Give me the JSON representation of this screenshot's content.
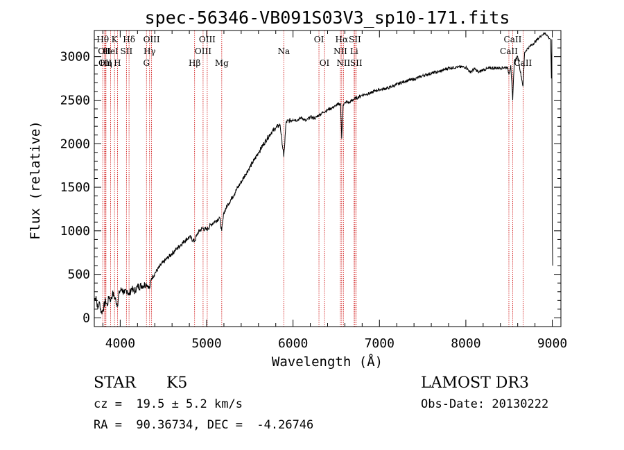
{
  "chart_data": {
    "type": "line",
    "title": "spec-56346-VB091S03V3_sp10-171.fits",
    "xlabel": "Wavelength (Å)",
    "ylabel": "Flux (relative)",
    "xlim": [
      3700,
      9100
    ],
    "ylim": [
      -100,
      3300
    ],
    "x_ticks": [
      4000,
      5000,
      6000,
      7000,
      8000,
      9000
    ],
    "y_ticks": [
      0,
      500,
      1000,
      1500,
      2000,
      2500,
      3000
    ],
    "series": [
      {
        "name": "flux",
        "points": [
          [
            3700,
            200
          ],
          [
            3720,
            250
          ],
          [
            3740,
            100
          ],
          [
            3760,
            180
          ],
          [
            3780,
            60
          ],
          [
            3800,
            90
          ],
          [
            3830,
            200
          ],
          [
            3850,
            140
          ],
          [
            3870,
            250
          ],
          [
            3890,
            200
          ],
          [
            3910,
            280
          ],
          [
            3930,
            250
          ],
          [
            3968,
            150
          ],
          [
            3990,
            300
          ],
          [
            4020,
            330
          ],
          [
            4050,
            280
          ],
          [
            4080,
            320
          ],
          [
            4102,
            260
          ],
          [
            4130,
            340
          ],
          [
            4160,
            300
          ],
          [
            4200,
            360
          ],
          [
            4250,
            370
          ],
          [
            4300,
            390
          ],
          [
            4340,
            340
          ],
          [
            4360,
            450
          ],
          [
            4400,
            510
          ],
          [
            4450,
            580
          ],
          [
            4500,
            640
          ],
          [
            4550,
            690
          ],
          [
            4600,
            740
          ],
          [
            4650,
            790
          ],
          [
            4700,
            840
          ],
          [
            4750,
            890
          ],
          [
            4800,
            930
          ],
          [
            4861,
            880
          ],
          [
            4900,
            980
          ],
          [
            4950,
            1030
          ],
          [
            5000,
            1010
          ],
          [
            5050,
            1070
          ],
          [
            5100,
            1110
          ],
          [
            5150,
            1150
          ],
          [
            5175,
            1000
          ],
          [
            5200,
            1210
          ],
          [
            5250,
            1310
          ],
          [
            5300,
            1390
          ],
          [
            5350,
            1480
          ],
          [
            5400,
            1560
          ],
          [
            5450,
            1650
          ],
          [
            5500,
            1730
          ],
          [
            5550,
            1810
          ],
          [
            5600,
            1900
          ],
          [
            5650,
            1980
          ],
          [
            5700,
            2060
          ],
          [
            5750,
            2130
          ],
          [
            5800,
            2180
          ],
          [
            5850,
            2220
          ],
          [
            5893,
            1850
          ],
          [
            5920,
            2250
          ],
          [
            6000,
            2280
          ],
          [
            6050,
            2270
          ],
          [
            6100,
            2300
          ],
          [
            6150,
            2260
          ],
          [
            6200,
            2310
          ],
          [
            6250,
            2290
          ],
          [
            6300,
            2330
          ],
          [
            6350,
            2360
          ],
          [
            6400,
            2390
          ],
          [
            6450,
            2410
          ],
          [
            6500,
            2440
          ],
          [
            6550,
            2460
          ],
          [
            6563,
            2060
          ],
          [
            6580,
            2450
          ],
          [
            6620,
            2480
          ],
          [
            6650,
            2470
          ],
          [
            6700,
            2510
          ],
          [
            6750,
            2530
          ],
          [
            6800,
            2560
          ],
          [
            6850,
            2570
          ],
          [
            6900,
            2580
          ],
          [
            6950,
            2610
          ],
          [
            7000,
            2620
          ],
          [
            7100,
            2640
          ],
          [
            7200,
            2680
          ],
          [
            7300,
            2720
          ],
          [
            7400,
            2740
          ],
          [
            7500,
            2780
          ],
          [
            7600,
            2810
          ],
          [
            7700,
            2830
          ],
          [
            7800,
            2870
          ],
          [
            7900,
            2880
          ],
          [
            8000,
            2880
          ],
          [
            8050,
            2820
          ],
          [
            8100,
            2860
          ],
          [
            8150,
            2820
          ],
          [
            8200,
            2850
          ],
          [
            8300,
            2870
          ],
          [
            8400,
            2870
          ],
          [
            8480,
            2880
          ],
          [
            8498,
            2800
          ],
          [
            8520,
            2900
          ],
          [
            8542,
            2500
          ],
          [
            8560,
            2950
          ],
          [
            8600,
            3000
          ],
          [
            8662,
            2660
          ],
          [
            8680,
            3050
          ],
          [
            8720,
            3100
          ],
          [
            8780,
            3150
          ],
          [
            8840,
            3210
          ],
          [
            8880,
            3250
          ],
          [
            8920,
            3270
          ],
          [
            8950,
            3230
          ],
          [
            8980,
            3200
          ],
          [
            8990,
            2750
          ],
          [
            8995,
            3200
          ],
          [
            9000,
            1000
          ],
          [
            9005,
            600
          ]
        ]
      }
    ],
    "line_markers": [
      {
        "wl": 3798,
        "label": "Hθ",
        "row": 0
      },
      {
        "wl": 3820,
        "label": "OII",
        "row": 1
      },
      {
        "wl": 3826,
        "label": "OII",
        "row": 2
      },
      {
        "wl": 3835,
        "label": "Hη",
        "row": 2
      },
      {
        "wl": 3889,
        "label": "HeI",
        "row": 1
      },
      {
        "wl": 3934,
        "label": "K",
        "row": 0
      },
      {
        "wl": 3968,
        "label": "H",
        "row": 2
      },
      {
        "wl": 4072,
        "label": "SII",
        "row": 1
      },
      {
        "wl": 4102,
        "label": "Hδ",
        "row": 0
      },
      {
        "wl": 4304,
        "label": "G",
        "row": 2
      },
      {
        "wl": 4340,
        "label": "Hγ",
        "row": 1
      },
      {
        "wl": 4363,
        "label": "OIII",
        "row": 0
      },
      {
        "wl": 4861,
        "label": "Hβ",
        "row": 2
      },
      {
        "wl": 4959,
        "label": "OIII",
        "row": 1
      },
      {
        "wl": 5007,
        "label": "OIII",
        "row": 0
      },
      {
        "wl": 5175,
        "label": "Mg",
        "row": 2
      },
      {
        "wl": 5893,
        "label": "Na",
        "row": 1
      },
      {
        "wl": 6300,
        "label": "OI",
        "row": 0
      },
      {
        "wl": 6364,
        "label": "OI",
        "row": 2
      },
      {
        "wl": 6548,
        "label": "NII",
        "row": 1
      },
      {
        "wl": 6563,
        "label": "Hα",
        "row": 0
      },
      {
        "wl": 6583,
        "label": "NII",
        "row": 2
      },
      {
        "wl": 6707,
        "label": "Li",
        "row": 1
      },
      {
        "wl": 6716,
        "label": "SII",
        "row": 0
      },
      {
        "wl": 6731,
        "label": "SII",
        "row": 2
      },
      {
        "wl": 8498,
        "label": "CaII",
        "row": 1
      },
      {
        "wl": 8542,
        "label": "CaII",
        "row": 0
      },
      {
        "wl": 8662,
        "label": "CaII",
        "row": 2
      }
    ],
    "marker_color": "#cc0000"
  },
  "info": {
    "object_class": "STAR",
    "subclass": "K5",
    "survey": "LAMOST DR3",
    "redshift": "cz =  19.5 ± 5.2 km/s",
    "obs_date": "Obs-Date: 20130222",
    "coords": "RA =  90.36734, DEC =  -4.26746"
  }
}
